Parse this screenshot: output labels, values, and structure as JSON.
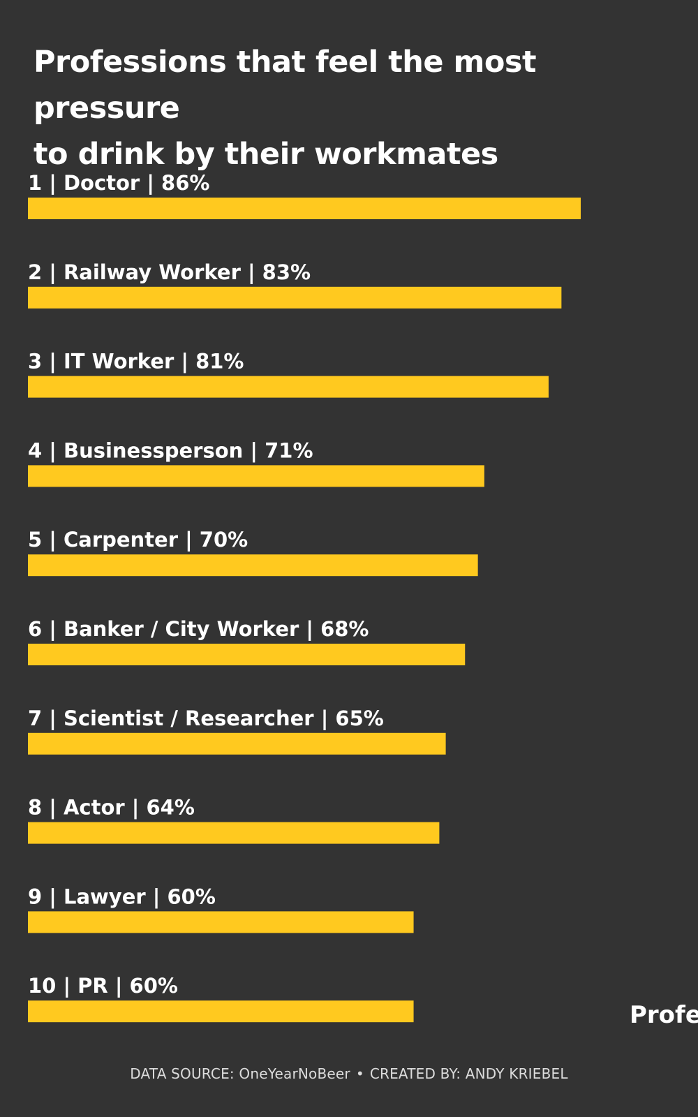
{
  "colors": {
    "background": "#333333",
    "bar": "#FFC91F",
    "text": "#FFFFFF",
    "footer_text": "#DCDCDC"
  },
  "chart_data": {
    "type": "bar",
    "orientation": "horizontal",
    "title": "Professions that feel the most pressure\nto drink by their workmates",
    "xlim": [
      0,
      100
    ],
    "value_suffix": "%",
    "grid": false,
    "categories": [
      "Doctor",
      "Railway Worker",
      "IT Worker",
      "Businessperson",
      "Carpenter",
      "Banker / City Worker",
      "Scientist / Researcher",
      "Actor",
      "Lawyer",
      "PR"
    ],
    "ranks": [
      1,
      2,
      3,
      4,
      5,
      6,
      7,
      8,
      9,
      10
    ],
    "values": [
      86,
      83,
      81,
      71,
      70,
      68,
      65,
      64,
      60,
      60
    ]
  },
  "overflow_text": "Profe",
  "footer": {
    "source": "DATA SOURCE: OneYearNoBeer",
    "separator": "•",
    "credit": "CREATED BY: ANDY KRIEBEL"
  }
}
